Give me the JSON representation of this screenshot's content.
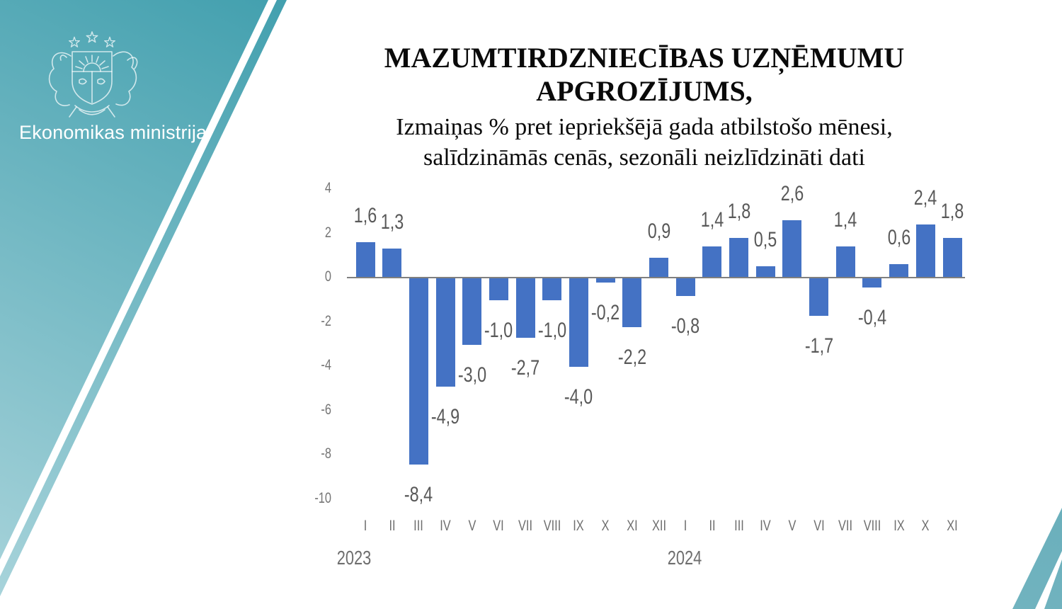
{
  "branding": {
    "ministry_name": "Ekonomikas ministrija",
    "logo_icon": "latvia-coat-of-arms",
    "band_gradient_start": "#15859f",
    "band_gradient_mid": "#3d9dac",
    "band_gradient_end": "#a9d4db",
    "wedge_gradient_start": "#4f9fae",
    "wedge_gradient_end": "#85bfc9",
    "stripe_color": "#ffffff"
  },
  "chart_data": {
    "type": "bar",
    "title_lines": [
      "MAZUMTIRDZNIECĪBAS UZŅĒMUMU",
      "APGROZĪJUMS,"
    ],
    "subtitle_lines": [
      "Izmaiņas % pret iepriekšējā gada atbilstošo mēnesi,",
      "salīdzināmās cenās, sezonāli neizlīdzināti dati"
    ],
    "unit": "%",
    "categories": [
      "I",
      "II",
      "III",
      "IV",
      "V",
      "VI",
      "VII",
      "VIII",
      "IX",
      "X",
      "XI",
      "XII",
      "I",
      "II",
      "III",
      "IV",
      "V",
      "VI",
      "VII",
      "VIII",
      "IX",
      "X",
      "XI"
    ],
    "values": [
      1.6,
      1.3,
      -8.4,
      -4.9,
      -3.0,
      -1.0,
      -2.7,
      -1.0,
      -4.0,
      -0.2,
      -2.2,
      0.9,
      -0.8,
      1.4,
      1.8,
      0.5,
      2.6,
      -1.7,
      1.4,
      -0.4,
      0.6,
      2.4,
      1.8
    ],
    "point_labels": [
      "1,6",
      "1,3",
      "-8,4",
      "-4,9",
      "-3,0",
      "-1,0",
      "-2,7",
      "-1,0",
      "-4,0",
      "-0,2",
      "-2,2",
      "0,9",
      "-0,8",
      "1,4",
      "1,8",
      "0,5",
      "2,6",
      "-1,7",
      "1,4",
      "-0,4",
      "0,6",
      "2,4",
      "1,8"
    ],
    "year_groups": [
      {
        "label": "2023",
        "start_index": 0
      },
      {
        "label": "2024",
        "start_index": 12
      }
    ],
    "y_ticks": [
      4,
      2,
      0,
      -2,
      -4,
      -6,
      -8,
      -10
    ],
    "ylim": [
      -10,
      4
    ],
    "grid": false,
    "legend": false,
    "bar_color": "#4472c4",
    "axis_line_color": "#7f7f7f",
    "data_label_color": "#595959",
    "tick_label_color": "#757575",
    "year_label_color": "#6e6e6e"
  }
}
